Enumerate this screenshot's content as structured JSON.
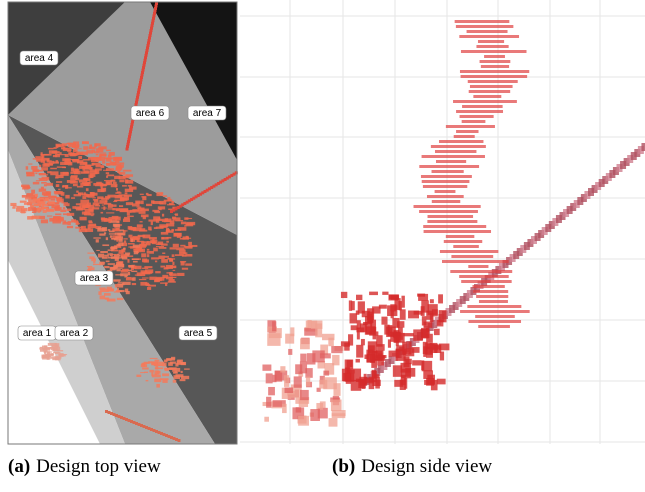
{
  "figures": [
    {
      "label": "(a)",
      "caption": "Design top view",
      "areas": [
        "area 4",
        "area 6",
        "area 7",
        "area 3",
        "area 1",
        "area 2",
        "area 5"
      ]
    },
    {
      "label": "(b)",
      "caption": "Design side view"
    }
  ]
}
